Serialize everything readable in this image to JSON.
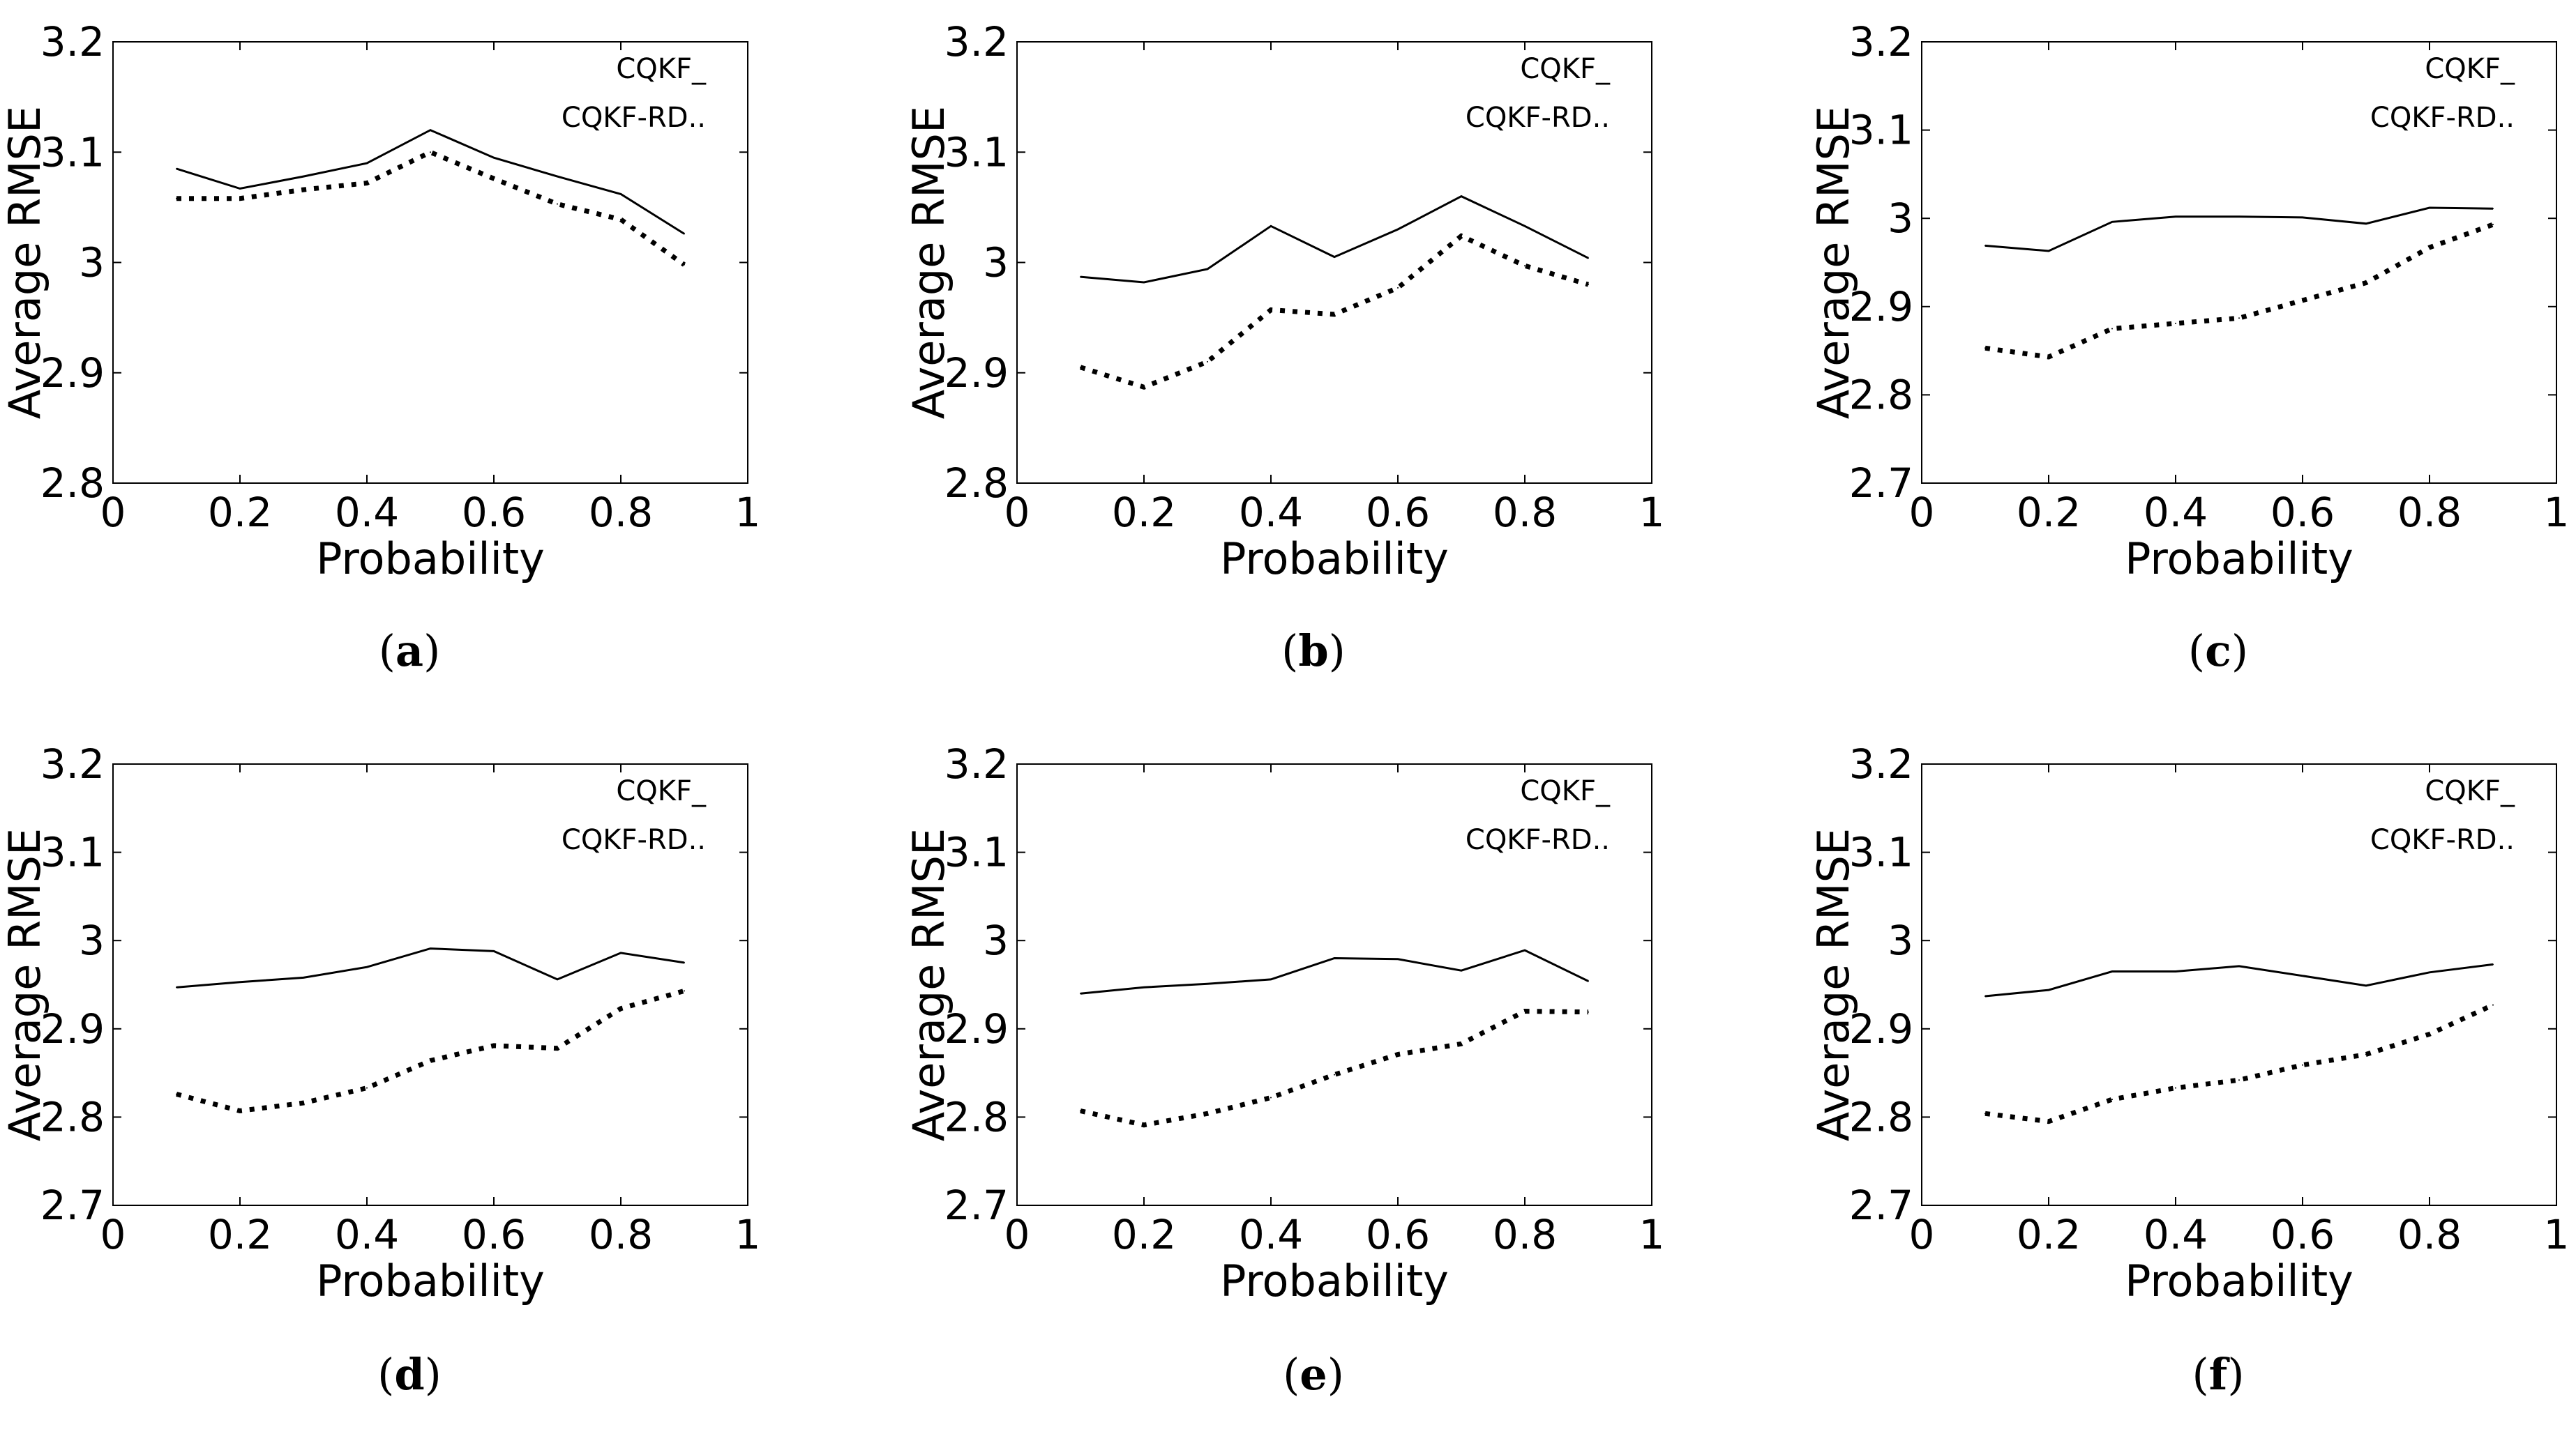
{
  "chart_data": [
    {
      "type": "line",
      "caption": "a",
      "xlabel": "Probability",
      "ylabel": "Average RMSE",
      "xlim": [
        0,
        1
      ],
      "ylim": [
        2.8,
        3.2
      ],
      "xticks": [
        "0",
        "0.2",
        "0.4",
        "0.6",
        "0.8",
        "1"
      ],
      "yticks": [
        "2.8",
        "2.9",
        "3",
        "3.1",
        "3.2"
      ],
      "x": [
        0.1,
        0.2,
        0.3,
        0.4,
        0.5,
        0.6,
        0.7,
        0.8,
        0.9
      ],
      "series": [
        {
          "name": "CQKF",
          "legend_label": "CQKF_",
          "style": "solid",
          "values": [
            3.085,
            3.067,
            3.078,
            3.09,
            3.12,
            3.095,
            3.078,
            3.062,
            3.026
          ]
        },
        {
          "name": "CQKF-RD",
          "legend_label": "CQKF-RD..",
          "style": "dotted",
          "values": [
            3.058,
            3.058,
            3.066,
            3.072,
            3.1,
            3.076,
            3.053,
            3.039,
            2.998
          ]
        }
      ]
    },
    {
      "type": "line",
      "caption": "b",
      "xlabel": "Probability",
      "ylabel": "Average RMSE",
      "xlim": [
        0,
        1
      ],
      "ylim": [
        2.8,
        3.2
      ],
      "xticks": [
        "0",
        "0.2",
        "0.4",
        "0.6",
        "0.8",
        "1"
      ],
      "yticks": [
        "2.8",
        "2.9",
        "3",
        "3.1",
        "3.2"
      ],
      "x": [
        0.1,
        0.2,
        0.3,
        0.4,
        0.5,
        0.6,
        0.7,
        0.8,
        0.9
      ],
      "series": [
        {
          "name": "CQKF",
          "legend_label": "CQKF_",
          "style": "solid",
          "values": [
            2.987,
            2.982,
            2.994,
            3.033,
            3.005,
            3.03,
            3.06,
            3.033,
            3.004
          ]
        },
        {
          "name": "CQKF-RD",
          "legend_label": "CQKF-RD..",
          "style": "dotted",
          "values": [
            2.905,
            2.887,
            2.91,
            2.957,
            2.953,
            2.977,
            3.024,
            2.997,
            2.98
          ]
        }
      ]
    },
    {
      "type": "line",
      "caption": "c",
      "xlabel": "Probability",
      "ylabel": "Average RMSE",
      "xlim": [
        0,
        1
      ],
      "ylim": [
        2.7,
        3.2
      ],
      "xticks": [
        "0",
        "0.2",
        "0.4",
        "0.6",
        "0.8",
        "1"
      ],
      "yticks": [
        "2.7",
        "2.8",
        "2.9",
        "3",
        "3.1",
        "3.2"
      ],
      "x": [
        0.1,
        0.2,
        0.3,
        0.4,
        0.5,
        0.6,
        0.7,
        0.8,
        0.9
      ],
      "series": [
        {
          "name": "CQKF",
          "legend_label": "CQKF_",
          "style": "solid",
          "values": [
            2.969,
            2.963,
            2.996,
            3.002,
            3.002,
            3.001,
            2.994,
            3.012,
            3.011
          ]
        },
        {
          "name": "CQKF-RD",
          "legend_label": "CQKF-RD..",
          "style": "dotted",
          "values": [
            2.853,
            2.843,
            2.875,
            2.881,
            2.887,
            2.907,
            2.927,
            2.967,
            2.993
          ]
        }
      ]
    },
    {
      "type": "line",
      "caption": "d",
      "xlabel": "Probability",
      "ylabel": "Average RMSE",
      "xlim": [
        0,
        1
      ],
      "ylim": [
        2.7,
        3.2
      ],
      "xticks": [
        "0",
        "0.2",
        "0.4",
        "0.6",
        "0.8",
        "1"
      ],
      "yticks": [
        "2.7",
        "2.8",
        "2.9",
        "3",
        "3.1",
        "3.2"
      ],
      "x": [
        0.1,
        0.2,
        0.3,
        0.4,
        0.5,
        0.6,
        0.7,
        0.8,
        0.9
      ],
      "series": [
        {
          "name": "CQKF",
          "legend_label": "CQKF_",
          "style": "solid",
          "values": [
            2.947,
            2.953,
            2.958,
            2.97,
            2.991,
            2.988,
            2.956,
            2.986,
            2.975
          ]
        },
        {
          "name": "CQKF-RD",
          "legend_label": "CQKF-RD..",
          "style": "dotted",
          "values": [
            2.826,
            2.807,
            2.816,
            2.833,
            2.864,
            2.881,
            2.878,
            2.923,
            2.943
          ]
        }
      ]
    },
    {
      "type": "line",
      "caption": "e",
      "xlabel": "Probability",
      "ylabel": "Average RMSE",
      "xlim": [
        0,
        1
      ],
      "ylim": [
        2.7,
        3.2
      ],
      "xticks": [
        "0",
        "0.2",
        "0.4",
        "0.6",
        "0.8",
        "1"
      ],
      "yticks": [
        "2.7",
        "2.8",
        "2.9",
        "3",
        "3.1",
        "3.2"
      ],
      "x": [
        0.1,
        0.2,
        0.3,
        0.4,
        0.5,
        0.6,
        0.7,
        0.8,
        0.9
      ],
      "series": [
        {
          "name": "CQKF",
          "legend_label": "CQKF_",
          "style": "solid",
          "values": [
            2.94,
            2.947,
            2.951,
            2.956,
            2.98,
            2.979,
            2.966,
            2.989,
            2.954
          ]
        },
        {
          "name": "CQKF-RD",
          "legend_label": "CQKF-RD..",
          "style": "dotted",
          "values": [
            2.807,
            2.791,
            2.804,
            2.822,
            2.848,
            2.871,
            2.883,
            2.92,
            2.919
          ]
        }
      ]
    },
    {
      "type": "line",
      "caption": "f",
      "xlabel": "Probability",
      "ylabel": "Average RMSE",
      "xlim": [
        0,
        1
      ],
      "ylim": [
        2.7,
        3.2
      ],
      "xticks": [
        "0",
        "0.2",
        "0.4",
        "0.6",
        "0.8",
        "1"
      ],
      "yticks": [
        "2.7",
        "2.8",
        "2.9",
        "3",
        "3.1",
        "3.2"
      ],
      "x": [
        0.1,
        0.2,
        0.3,
        0.4,
        0.5,
        0.6,
        0.7,
        0.8,
        0.9
      ],
      "series": [
        {
          "name": "CQKF",
          "legend_label": "CQKF_",
          "style": "solid",
          "values": [
            2.937,
            2.944,
            2.965,
            2.965,
            2.971,
            2.96,
            2.949,
            2.964,
            2.973
          ]
        },
        {
          "name": "CQKF-RD",
          "legend_label": "CQKF-RD..",
          "style": "dotted",
          "values": [
            2.804,
            2.795,
            2.82,
            2.833,
            2.842,
            2.859,
            2.871,
            2.894,
            2.927
          ]
        }
      ]
    }
  ]
}
